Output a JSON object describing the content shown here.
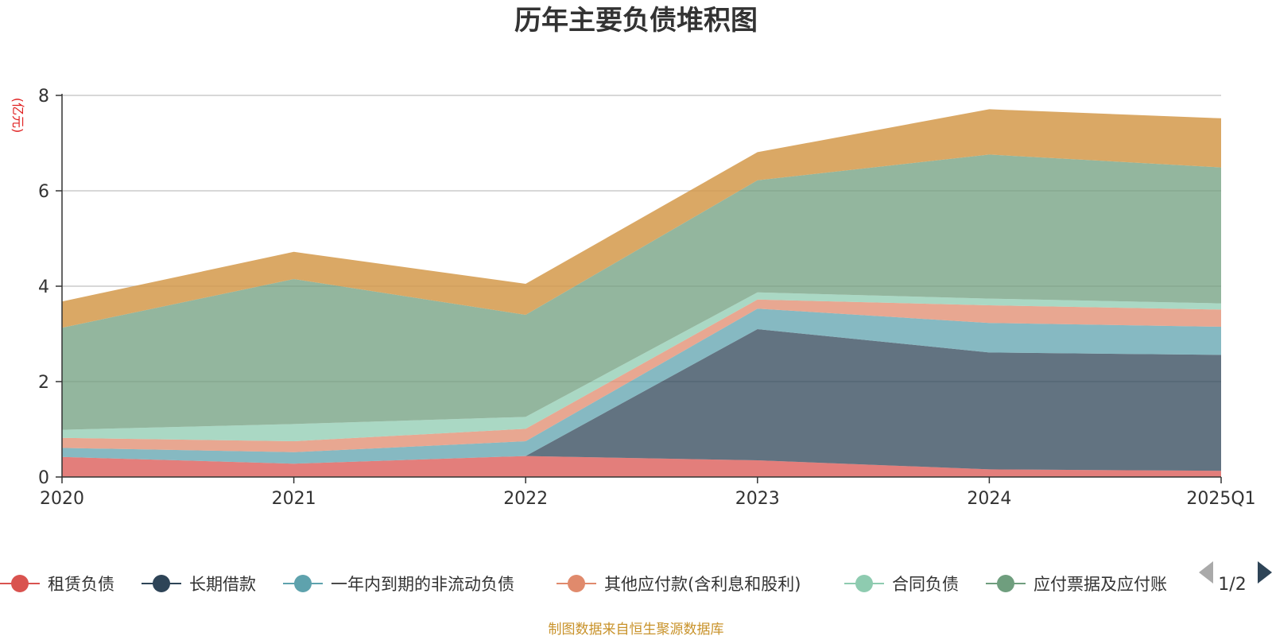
{
  "chart_data": {
    "type": "area",
    "stacked": true,
    "title": "历年主要负债堆积图",
    "unit_label": "(亿元)",
    "categories": [
      "2020",
      "2021",
      "2022",
      "2023",
      "2024",
      "2025Q1"
    ],
    "ylim": [
      0,
      8
    ],
    "yticks": [
      "0",
      "2",
      "4",
      "6",
      "8"
    ],
    "grid": true,
    "series": [
      {
        "name": "租赁负债",
        "color": "#d9534f",
        "values": [
          0.42,
          0.28,
          0.44,
          0.35,
          0.16,
          0.13
        ]
      },
      {
        "name": "长期借款",
        "color": "#2e4457",
        "values": [
          0.0,
          0.0,
          0.0,
          2.75,
          2.45,
          2.43
        ]
      },
      {
        "name": "一年内到期的非流动负债",
        "color": "#5ea2ad",
        "values": [
          0.19,
          0.24,
          0.31,
          0.43,
          0.62,
          0.59
        ]
      },
      {
        "name": "其他应付款(含利息和股利)",
        "color": "#e08a6c",
        "values": [
          0.21,
          0.23,
          0.26,
          0.19,
          0.37,
          0.36
        ]
      },
      {
        "name": "合同负债",
        "color": "#8ecbb0",
        "values": [
          0.17,
          0.36,
          0.25,
          0.15,
          0.14,
          0.13
        ]
      },
      {
        "name": "应付票据及应付账款",
        "color": "#6f9e7e",
        "values": [
          2.14,
          3.04,
          2.14,
          2.35,
          3.02,
          2.85
        ]
      },
      {
        "name": "",
        "color": "#d4994a",
        "values": [
          0.55,
          0.57,
          0.65,
          0.59,
          0.95,
          1.03
        ]
      }
    ],
    "legend_position": "bottom",
    "legend_visible_labels": [
      "租赁负债",
      "长期借款",
      "一年内到期的非流动负债",
      "其他应付款(含利息和股利)",
      "合同负债",
      "应付票据及应付账"
    ]
  },
  "legend_pager": {
    "text": "1/2"
  },
  "footer": {
    "text": "制图数据来自恒生聚源数据库"
  },
  "icons": {
    "prev": "chevron-left-icon",
    "next": "chevron-right-icon"
  }
}
